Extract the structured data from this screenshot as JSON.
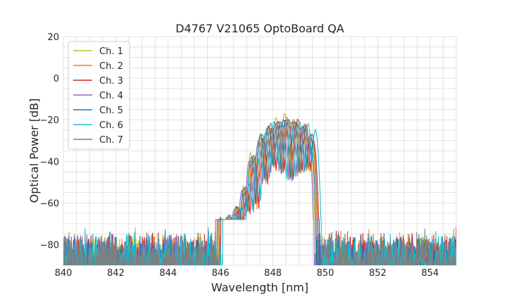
{
  "chart_data": {
    "type": "line",
    "title": "D4767 V21065 OptoBoard QA",
    "xlabel": "Wavelength [nm]",
    "ylabel": "Optical Power [dB]",
    "xlim": [
      840,
      855
    ],
    "ylim": [
      -90,
      20
    ],
    "xticks": [
      840,
      842,
      844,
      846,
      848,
      850,
      852,
      854
    ],
    "yticks": [
      20,
      0,
      -20,
      -40,
      -60,
      -80
    ],
    "grid": true,
    "legend_position": "top-left",
    "series": [
      {
        "name": "Ch. 1",
        "color": "#bcbd22",
        "peaks": [
          [
            845.98,
            -68
          ],
          [
            846.28,
            -67
          ],
          [
            846.58,
            -62
          ],
          [
            846.88,
            -52
          ],
          [
            847.15,
            -36
          ],
          [
            847.5,
            -28
          ],
          [
            847.82,
            -23
          ],
          [
            848.12,
            -19
          ],
          [
            848.45,
            -17
          ],
          [
            848.8,
            -20
          ],
          [
            849.12,
            -23
          ],
          [
            849.4,
            -30
          ]
        ]
      },
      {
        "name": "Ch. 2",
        "color": "#ff7f0e",
        "peaks": [
          [
            846.05,
            -68
          ],
          [
            846.35,
            -67
          ],
          [
            846.65,
            -62
          ],
          [
            846.95,
            -53
          ],
          [
            847.23,
            -38
          ],
          [
            847.58,
            -29
          ],
          [
            847.9,
            -24
          ],
          [
            848.2,
            -21
          ],
          [
            848.53,
            -19
          ],
          [
            848.88,
            -21
          ],
          [
            849.2,
            -23
          ],
          [
            849.48,
            -29
          ]
        ]
      },
      {
        "name": "Ch. 3",
        "color": "#d62728",
        "peaks": [
          [
            846.12,
            -69
          ],
          [
            846.42,
            -67
          ],
          [
            846.72,
            -63
          ],
          [
            847.02,
            -54
          ],
          [
            847.3,
            -38
          ],
          [
            847.65,
            -29
          ],
          [
            847.97,
            -24
          ],
          [
            848.28,
            -21
          ],
          [
            848.6,
            -20
          ],
          [
            848.95,
            -20
          ],
          [
            849.27,
            -23
          ],
          [
            849.55,
            -30
          ]
        ]
      },
      {
        "name": "Ch. 4",
        "color": "#9467bd",
        "peaks": [
          [
            845.92,
            -68
          ],
          [
            846.22,
            -67
          ],
          [
            846.52,
            -63
          ],
          [
            846.82,
            -54
          ],
          [
            847.1,
            -40
          ],
          [
            847.45,
            -30
          ],
          [
            847.77,
            -24
          ],
          [
            848.08,
            -22
          ],
          [
            848.4,
            -20
          ],
          [
            848.75,
            -21
          ],
          [
            849.07,
            -24
          ],
          [
            849.35,
            -29
          ]
        ]
      },
      {
        "name": "Ch. 5",
        "color": "#1f77b4",
        "peaks": [
          [
            846.0,
            -67
          ],
          [
            846.3,
            -66
          ],
          [
            846.6,
            -62
          ],
          [
            846.9,
            -53
          ],
          [
            847.18,
            -38
          ],
          [
            847.53,
            -27
          ],
          [
            847.85,
            -23
          ],
          [
            848.15,
            -21
          ],
          [
            848.48,
            -20
          ],
          [
            848.83,
            -21
          ],
          [
            849.15,
            -23
          ],
          [
            849.43,
            -27
          ]
        ]
      },
      {
        "name": "Ch. 6",
        "color": "#17becf",
        "peaks": [
          [
            846.2,
            -68
          ],
          [
            846.5,
            -66
          ],
          [
            846.8,
            -62
          ],
          [
            847.1,
            -51
          ],
          [
            847.38,
            -36
          ],
          [
            847.72,
            -26
          ],
          [
            848.04,
            -21
          ],
          [
            848.34,
            -21
          ],
          [
            848.68,
            -21
          ],
          [
            849.02,
            -21
          ],
          [
            849.34,
            -22
          ],
          [
            849.62,
            -25
          ]
        ]
      },
      {
        "name": "Ch. 7",
        "color": "#7f7f7f",
        "peaks": [
          [
            846.08,
            -68
          ],
          [
            846.38,
            -66
          ],
          [
            846.68,
            -62
          ],
          [
            846.98,
            -52
          ],
          [
            847.26,
            -37
          ],
          [
            847.6,
            -27
          ],
          [
            847.92,
            -22
          ],
          [
            848.22,
            -21
          ],
          [
            848.55,
            -20
          ],
          [
            848.9,
            -21
          ],
          [
            849.22,
            -22
          ],
          [
            849.5,
            -27
          ]
        ]
      }
    ]
  }
}
